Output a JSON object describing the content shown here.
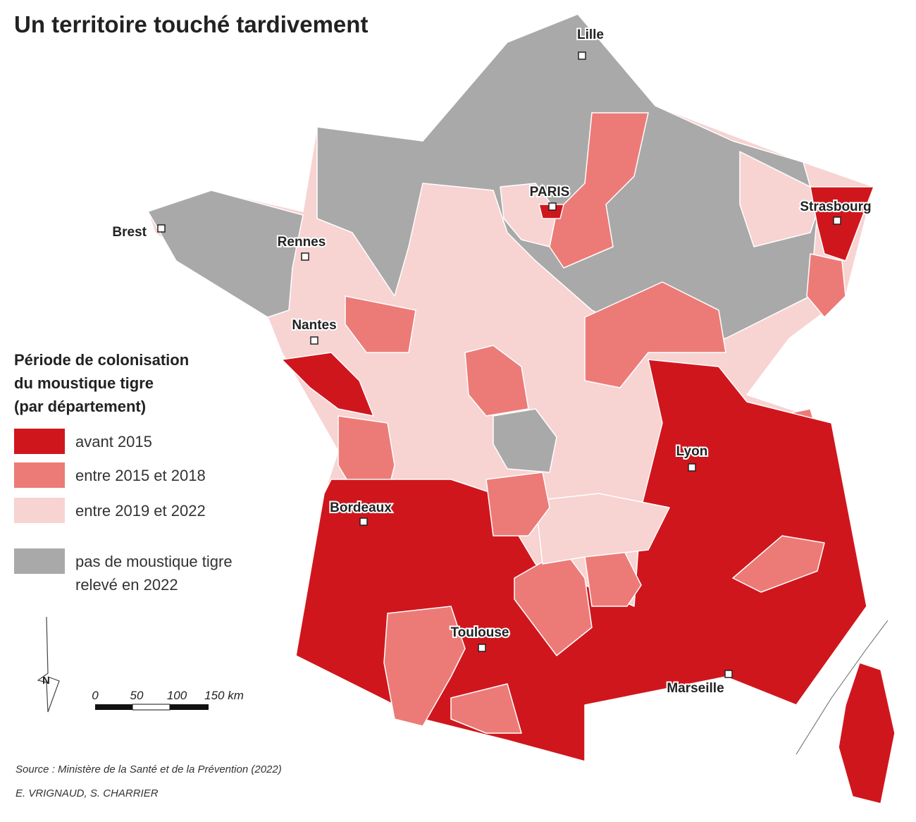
{
  "title": "Un territoire touché tardivement",
  "legend": {
    "title": [
      "Période de colonisation",
      "du moustique tigre",
      "(par département)"
    ],
    "items": [
      {
        "label": [
          "avant 2015"
        ],
        "color": "#d0161d"
      },
      {
        "label": [
          "entre 2015 et 2018"
        ],
        "color": "#ec7b78"
      },
      {
        "label": [
          "entre 2019 et 2022"
        ],
        "color": "#f7d3d2"
      },
      {
        "label": [
          "pas de moustique tigre",
          "relevé en 2022"
        ],
        "color": "#a9a9a9"
      }
    ]
  },
  "cities": [
    "Lille",
    "PARIS",
    "Strasbourg",
    "Brest",
    "Rennes",
    "Nantes",
    "Lyon",
    "Bordeaux",
    "Toulouse",
    "Marseille"
  ],
  "north": "N",
  "scale": [
    "0",
    "50",
    "100",
    "150 km"
  ],
  "source": "Source : Ministère de la Santé et de la Prévention (2022)",
  "authors": "E. VRIGNAUD, S. CHARRIER"
}
